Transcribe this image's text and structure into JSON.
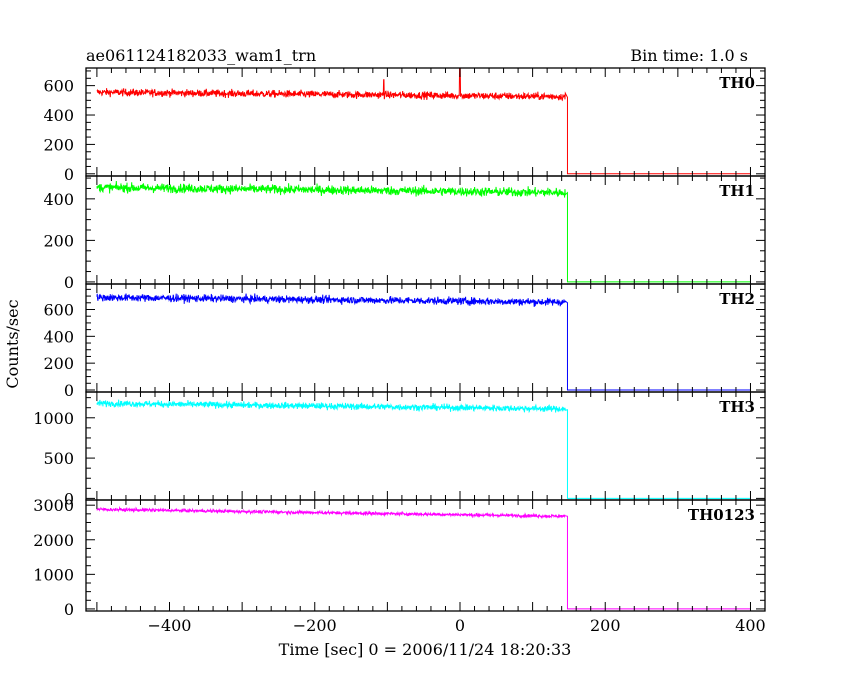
{
  "header": {
    "title": "ae061124182033_wam1_trn",
    "bin_time": "Bin time: 1.0 s"
  },
  "chart_data": {
    "type": "line",
    "xlabel": "Time [sec] 0 = 2006/11/24 18:20:33",
    "ylabel": "Counts/sec",
    "xlim": [
      -515,
      420
    ],
    "xticks": [
      -400,
      -200,
      0,
      200,
      400
    ],
    "xtick_labels": [
      "−400",
      "−200",
      "0",
      "200",
      "400"
    ],
    "grid": false,
    "panels": [
      {
        "name": "TH0",
        "color": "#ff0000",
        "ylim": [
          -15,
          720
        ],
        "yticks": [
          0,
          200,
          400,
          600
        ],
        "ytick_labels": [
          "0",
          "200",
          "400",
          "600"
        ],
        "series": [
          {
            "t_start": -500,
            "t_end": 145,
            "start_level": 555,
            "end_level": 525,
            "noise": 25
          },
          {
            "t": 148,
            "drop": [
              520,
              0
            ]
          },
          {
            "t_start": 148,
            "t_end": 400,
            "level": 0
          }
        ],
        "spikes": [
          {
            "t": 0,
            "peak": 720
          },
          {
            "t": -105,
            "peak": 640
          }
        ]
      },
      {
        "name": "TH1",
        "color": "#00ff00",
        "ylim": [
          -10,
          510
        ],
        "yticks": [
          0,
          200,
          400
        ],
        "ytick_labels": [
          "0",
          "200",
          "400"
        ],
        "series": [
          {
            "t_start": -500,
            "t_end": 145,
            "start_level": 455,
            "end_level": 430,
            "noise": 22
          },
          {
            "t": 148,
            "drop": [
              430,
              0
            ]
          },
          {
            "t_start": 148,
            "t_end": 400,
            "level": 0
          }
        ],
        "spikes": []
      },
      {
        "name": "TH2",
        "color": "#0000ff",
        "ylim": [
          -15,
          790
        ],
        "yticks": [
          0,
          200,
          400,
          600
        ],
        "ytick_labels": [
          "0",
          "200",
          "400",
          "600"
        ],
        "series": [
          {
            "t_start": -500,
            "t_end": 145,
            "start_level": 690,
            "end_level": 655,
            "noise": 28
          },
          {
            "t": 148,
            "drop": [
              650,
              0
            ]
          },
          {
            "t_start": 148,
            "t_end": 400,
            "level": 0
          }
        ],
        "spikes": []
      },
      {
        "name": "TH3",
        "color": "#00ffff",
        "ylim": [
          -20,
          1320
        ],
        "yticks": [
          0,
          500,
          1000
        ],
        "ytick_labels": [
          "0",
          "500",
          "1000"
        ],
        "series": [
          {
            "t_start": -500,
            "t_end": 145,
            "start_level": 1180,
            "end_level": 1110,
            "noise": 40
          },
          {
            "t": 148,
            "drop": [
              1100,
              0
            ]
          },
          {
            "t_start": 148,
            "t_end": 400,
            "level": 0
          }
        ],
        "spikes": []
      },
      {
        "name": "TH0123",
        "color": "#ff00ff",
        "ylim": [
          -60,
          3150
        ],
        "yticks": [
          0,
          1000,
          2000,
          3000
        ],
        "ytick_labels": [
          "0",
          "1000",
          "2000",
          "3000"
        ],
        "series": [
          {
            "t_start": -500,
            "t_end": 145,
            "start_level": 2880,
            "end_level": 2680,
            "noise": 45
          },
          {
            "t": 148,
            "drop": [
              2680,
              0
            ]
          },
          {
            "t_start": 148,
            "t_end": 400,
            "level": 0
          }
        ],
        "spikes": []
      }
    ]
  }
}
